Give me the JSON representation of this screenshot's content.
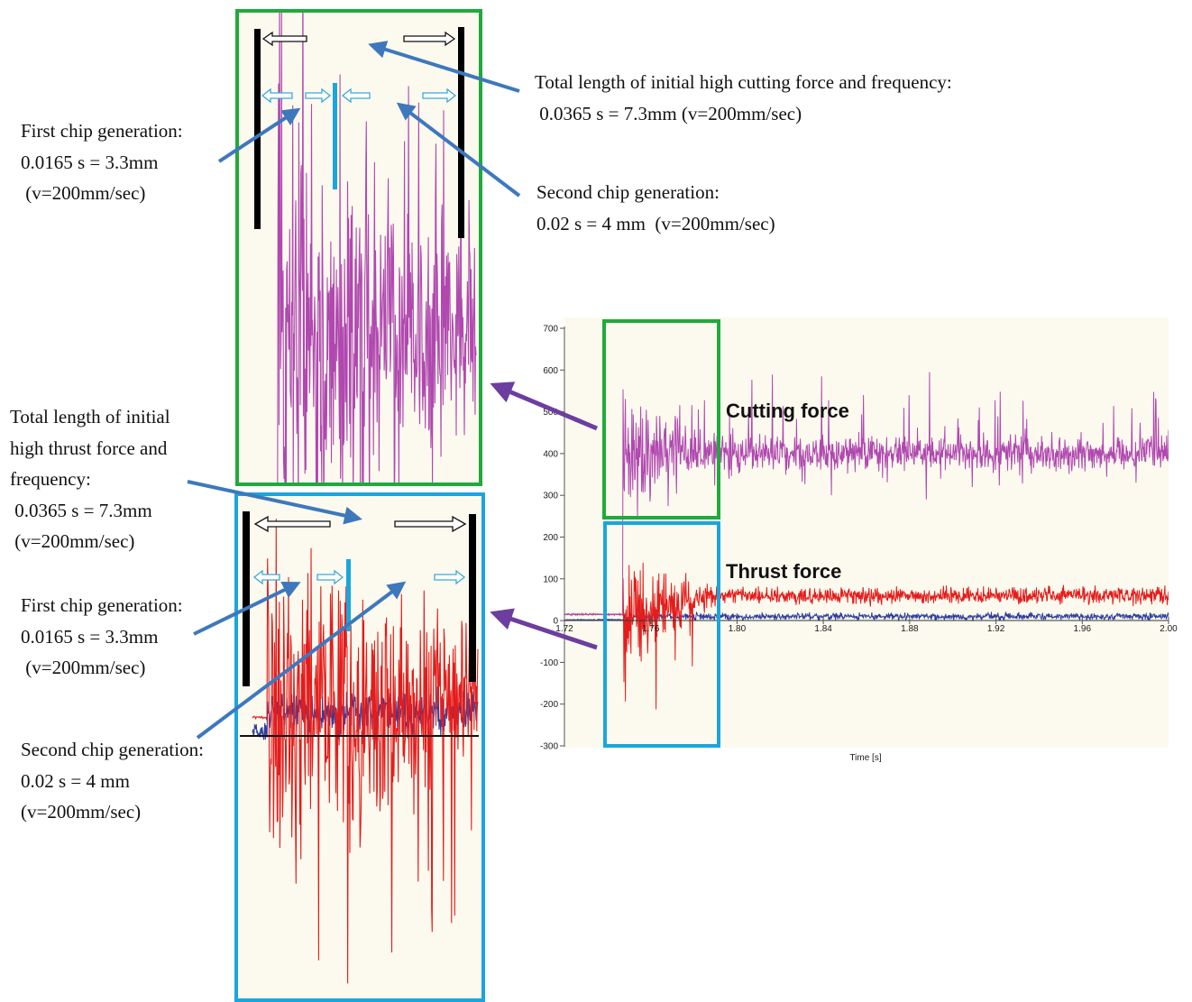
{
  "annotations": {
    "cut_total": [
      "Total length of initial high cutting force and frequency:",
      " 0.0365 s = 7.3mm (v=200mm/sec)"
    ],
    "cut_first": [
      "First chip generation:",
      "0.0165 s = 3.3mm",
      " (v=200mm/sec)"
    ],
    "cut_second": [
      "Second chip generation:",
      "0.02 s = 4 mm  (v=200mm/sec)"
    ],
    "thrust_total": [
      "Total length of initial",
      "high thrust force and",
      "frequency:",
      " 0.0365 s = 7.3mm",
      " (v=200mm/sec)"
    ],
    "thrust_first": [
      "First chip generation:",
      "0.0165 s = 3.3mm",
      " (v=200mm/sec)"
    ],
    "thrust_second": [
      "Second chip generation:",
      "0.02 s = 4 mm",
      "(v=200mm/sec)"
    ]
  },
  "chart_data": {
    "type": "line",
    "title": "",
    "xlabel": "Time [s]",
    "ylabel": "",
    "xlim": [
      1.72,
      2.0
    ],
    "ylim": [
      -300,
      700
    ],
    "x_ticks": [
      "1.72",
      "1.76",
      "1.80",
      "1.84",
      "1.88",
      "1.92",
      "1.96",
      "2.00"
    ],
    "y_ticks": [
      "700",
      "600",
      "500",
      "400",
      "300",
      "200",
      "100",
      "0",
      "-100",
      "-200",
      "-300"
    ],
    "grid": false,
    "cut_onset_s": 1.747,
    "series": [
      {
        "name": "Cutting force",
        "color": "#b048b0",
        "steady_mean": 400,
        "steady_amplitude": 60,
        "initial_peak": 700
      },
      {
        "name": "Thrust force",
        "color": "#e41c1c",
        "steady_mean": 60,
        "steady_amplitude": 30,
        "initial_min": -290
      },
      {
        "name": "",
        "color": "#2d3da0",
        "steady_mean": 10,
        "steady_amplitude": 12
      }
    ],
    "highlight_colors": {
      "cutting": "#1faa3c",
      "thrust": "#1aa6dd",
      "arrows": "#3d78bd",
      "pointer": "#6b3ea0"
    }
  }
}
